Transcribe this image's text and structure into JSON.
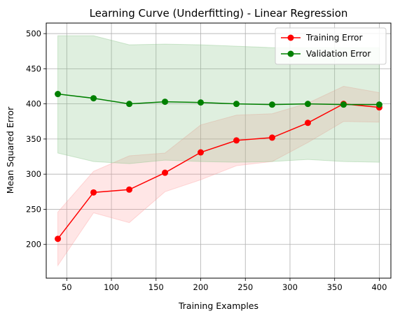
{
  "chart_data": {
    "type": "line",
    "title": "Learning Curve (Underfitting) - Linear Regression",
    "xlabel": "Training Examples",
    "ylabel": "Mean Squared Error",
    "xlim": [
      27,
      413
    ],
    "ylim": [
      152,
      515
    ],
    "xticks": [
      50,
      100,
      150,
      200,
      250,
      300,
      350,
      400
    ],
    "yticks": [
      200,
      250,
      300,
      350,
      400,
      450,
      500
    ],
    "grid": true,
    "legend_position": "top-right",
    "x": [
      40,
      80,
      120,
      160,
      200,
      240,
      280,
      320,
      360,
      400
    ],
    "series": [
      {
        "name": "Training Error",
        "color": "#ff0000",
        "band_color": "#ff9b9b",
        "values": [
          208,
          274,
          278,
          302,
          331,
          348,
          352,
          373,
          400,
          395
        ],
        "band_low": [
          170,
          245,
          231,
          275,
          292,
          312,
          318,
          345,
          375,
          374
        ],
        "band_high": [
          246,
          304,
          326,
          330,
          370,
          384,
          386,
          401,
          425,
          416
        ]
      },
      {
        "name": "Validation Error",
        "color": "#008000",
        "band_color": "#7fbf7f",
        "values": [
          414,
          408,
          400,
          403,
          402,
          400,
          399,
          400,
          399,
          399
        ],
        "band_low": [
          330,
          318,
          315,
          320,
          318,
          317,
          318,
          321,
          318,
          317
        ],
        "band_high": [
          497,
          497,
          484,
          485,
          484,
          482,
          480,
          480,
          480,
          480
        ]
      }
    ]
  }
}
